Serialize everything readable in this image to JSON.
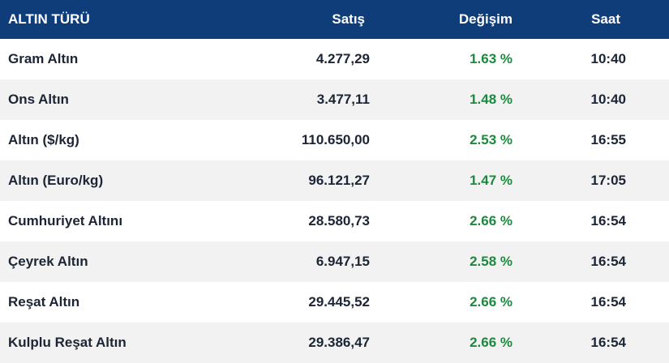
{
  "header": {
    "name": "ALTIN TÜRÜ",
    "sell": "Satış",
    "change": "Değişim",
    "time": "Saat"
  },
  "colors": {
    "header_bg": "#0f3d7a",
    "row_alt_bg": "#f2f2f2",
    "text": "#1b2535",
    "positive": "#1c8a3e"
  },
  "rows": [
    {
      "name": "Gram Altın",
      "sell": "4.277,29",
      "change": "1.63 %",
      "time": "10:40"
    },
    {
      "name": "Ons Altın",
      "sell": "3.477,11",
      "change": "1.48 %",
      "time": "10:40"
    },
    {
      "name": "Altın ($/kg)",
      "sell": "110.650,00",
      "change": "2.53 %",
      "time": "16:55"
    },
    {
      "name": "Altın (Euro/kg)",
      "sell": "96.121,27",
      "change": "1.47 %",
      "time": "17:05"
    },
    {
      "name": "Cumhuriyet Altını",
      "sell": "28.580,73",
      "change": "2.66 %",
      "time": "16:54"
    },
    {
      "name": "Çeyrek Altın",
      "sell": "6.947,15",
      "change": "2.58 %",
      "time": "16:54"
    },
    {
      "name": "Reşat Altın",
      "sell": "29.445,52",
      "change": "2.66 %",
      "time": "16:54"
    },
    {
      "name": "Kulplu Reşat Altın",
      "sell": "29.386,47",
      "change": "2.66 %",
      "time": "16:54"
    }
  ]
}
